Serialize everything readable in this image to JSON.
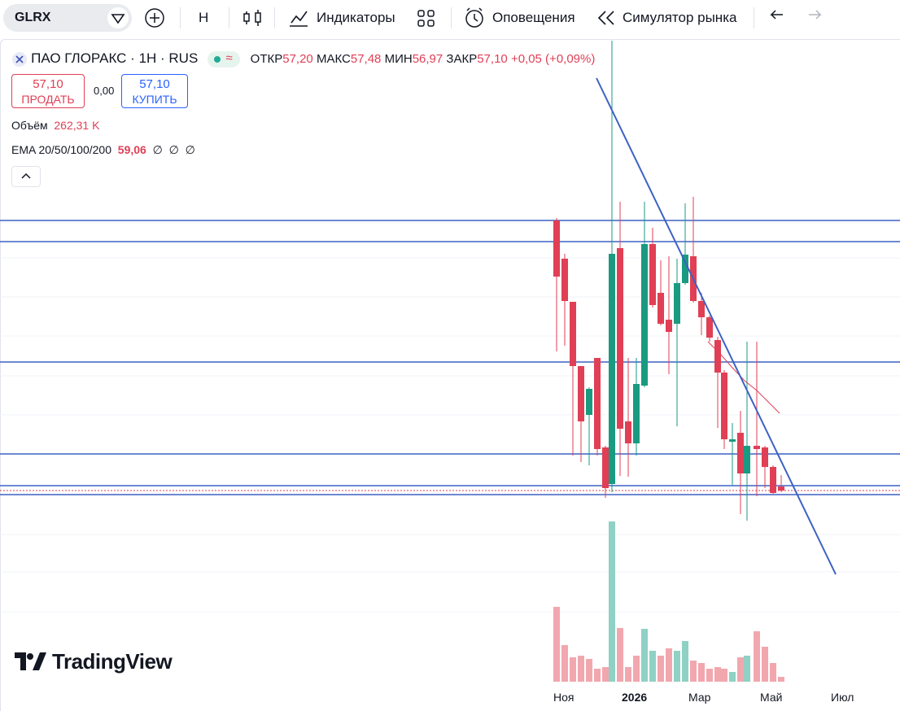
{
  "toolbar": {
    "symbol": "GLRX",
    "interval": "Н",
    "indicators": "Индикаторы",
    "alerts": "Оповещения",
    "replay": "Симулятор рынка"
  },
  "legend": {
    "title": "ПАО ГЛОРАКС · 1Н · RUS",
    "ohlc": [
      {
        "label": "ОТКР",
        "value": "57,20"
      },
      {
        "label": "МАКС",
        "value": "57,48"
      },
      {
        "label": "МИН",
        "value": "56,97"
      },
      {
        "label": "ЗАКР",
        "value": "57,10"
      }
    ],
    "change": "+0,05 (+0,09%)",
    "sell": {
      "price": "57,10",
      "label": "ПРОДАТЬ"
    },
    "spread": "0,00",
    "buy": {
      "price": "57,10",
      "label": "КУПИТЬ"
    },
    "volume": {
      "label": "Объём",
      "value": "262,31 K"
    },
    "ema": {
      "label": "EMA 20/50/100/200",
      "value": "59,06",
      "empty": [
        "∅",
        "∅",
        "∅"
      ]
    }
  },
  "watermark": "TradingView",
  "time_axis": [
    "Ноя",
    "2026",
    "Мар",
    "Май",
    "Июл"
  ]
}
